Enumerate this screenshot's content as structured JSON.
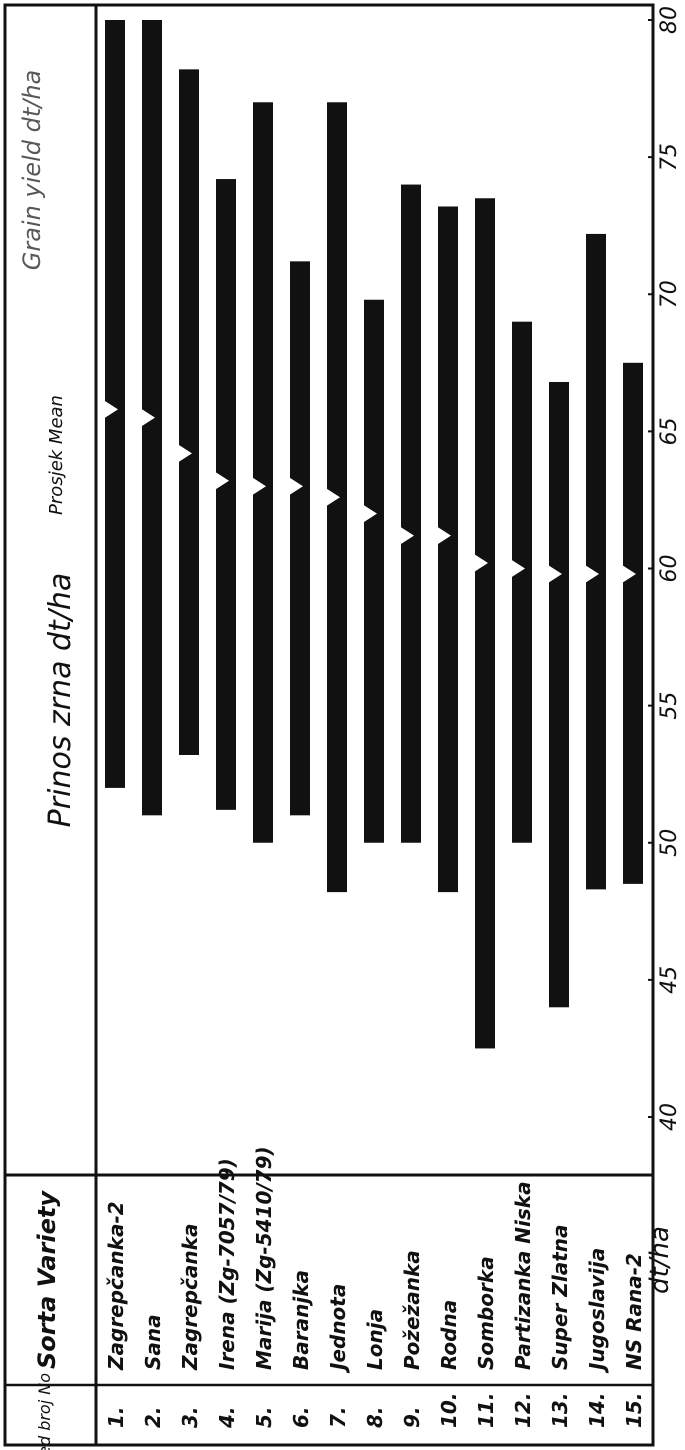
{
  "headers": {
    "num": "Red broj No",
    "variety": "Sorta Variety",
    "title": "Prinos zrna dt/ha",
    "title_en": "Grain yield dt/ha",
    "mean": "Prosjek Mean",
    "unit": "dt/ha"
  },
  "chart_data": {
    "type": "range_bar",
    "orientation": "horizontal-rotated-90",
    "axis_label": "dt/ha",
    "axis_range": [
      40,
      80
    ],
    "ticks": [
      "40",
      "45",
      "50",
      "55",
      "60",
      "65",
      "70",
      "75",
      "80"
    ],
    "series_label": "Prosjek Mean",
    "rows": [
      {
        "no": "1.",
        "variety": "Zagrepčanka-2",
        "min": 52,
        "max": 80,
        "mean": 65.8
      },
      {
        "no": "2.",
        "variety": "Sana",
        "min": 51,
        "max": 80,
        "mean": 65.5
      },
      {
        "no": "3.",
        "variety": "Zagrepčanka",
        "min": 53.2,
        "max": 78.2,
        "mean": 64.2
      },
      {
        "no": "4.",
        "variety": "Irena (Zg-7057/79)",
        "min": 51.2,
        "max": 74.2,
        "mean": 63.2
      },
      {
        "no": "5.",
        "variety": "Marija (Zg-5410/79)",
        "min": 50,
        "max": 77,
        "mean": 63
      },
      {
        "no": "6.",
        "variety": "Baranjka",
        "min": 51,
        "max": 71.2,
        "mean": 63
      },
      {
        "no": "7.",
        "variety": "Jednota",
        "min": 48.2,
        "max": 77,
        "mean": 62.6
      },
      {
        "no": "8.",
        "variety": "Lonja",
        "min": 50,
        "max": 69.8,
        "mean": 62
      },
      {
        "no": "9.",
        "variety": "Požežanka",
        "min": 50,
        "max": 74,
        "mean": 61.2
      },
      {
        "no": "10.",
        "variety": "Rodna",
        "min": 48.2,
        "max": 73.2,
        "mean": 61.2
      },
      {
        "no": "11.",
        "variety": "Somborka",
        "min": 42.5,
        "max": 73.5,
        "mean": 60.2
      },
      {
        "no": "12.",
        "variety": "Partizanka Niska",
        "min": 50,
        "max": 69,
        "mean": 60
      },
      {
        "no": "13.",
        "variety": "Super Zlatna",
        "min": 44,
        "max": 66.8,
        "mean": 59.8
      },
      {
        "no": "14.",
        "variety": "Jugoslavija",
        "min": 48.3,
        "max": 72.2,
        "mean": 59.8
      },
      {
        "no": "15.",
        "variety": "NS Rana-2",
        "min": 48.5,
        "max": 67.5,
        "mean": 59.8
      }
    ]
  }
}
